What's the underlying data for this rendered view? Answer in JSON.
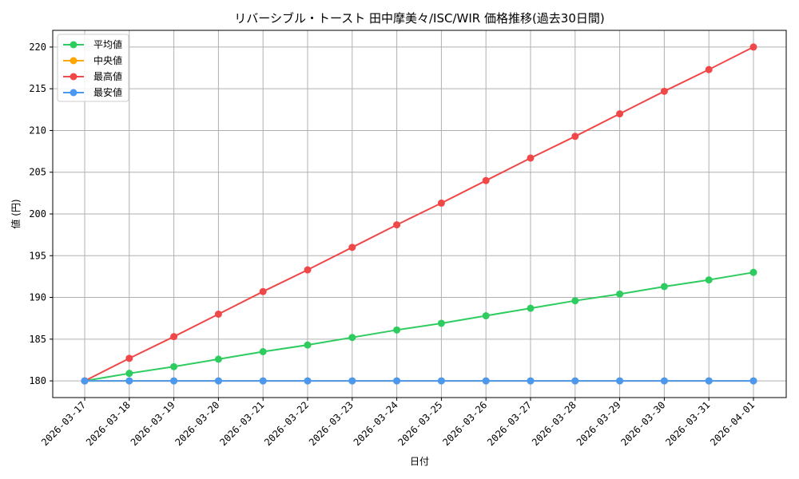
{
  "chart_data": {
    "type": "line",
    "title": "リバーシブル・トースト 田中摩美々/ISC/WIR 価格推移(過去30日間)",
    "xlabel": "日付",
    "ylabel": "値 (円)",
    "ylim": [
      178,
      222
    ],
    "yticks": [
      180,
      185,
      190,
      195,
      200,
      205,
      210,
      215,
      220
    ],
    "grid": true,
    "legend_position": "top-left",
    "categories": [
      "2026-03-17",
      "2026-03-18",
      "2026-03-19",
      "2026-03-20",
      "2026-03-21",
      "2026-03-22",
      "2026-03-23",
      "2026-03-24",
      "2026-03-25",
      "2026-03-26",
      "2026-03-27",
      "2026-03-28",
      "2026-03-29",
      "2026-03-30",
      "2026-03-31",
      "2026-04-01"
    ],
    "series": [
      {
        "name": "平均値",
        "color": "#2ecc5e",
        "values": [
          180,
          180.9,
          181.7,
          182.6,
          183.5,
          184.3,
          185.2,
          186.1,
          186.9,
          187.8,
          188.7,
          189.6,
          190.4,
          191.3,
          192.1,
          193
        ]
      },
      {
        "name": "中央値",
        "color": "#ffa500",
        "values": [
          180,
          180,
          180,
          180,
          180,
          180,
          180,
          180,
          180,
          180,
          180,
          180,
          180,
          180,
          180,
          180
        ]
      },
      {
        "name": "最高値",
        "color": "#f04848",
        "values": [
          180,
          182.7,
          185.3,
          188,
          190.7,
          193.3,
          196,
          198.7,
          201.3,
          204,
          206.7,
          209.3,
          212,
          214.7,
          217.3,
          220
        ]
      },
      {
        "name": "最安値",
        "color": "#4a98f0",
        "values": [
          180,
          180,
          180,
          180,
          180,
          180,
          180,
          180,
          180,
          180,
          180,
          180,
          180,
          180,
          180,
          180
        ]
      }
    ]
  }
}
